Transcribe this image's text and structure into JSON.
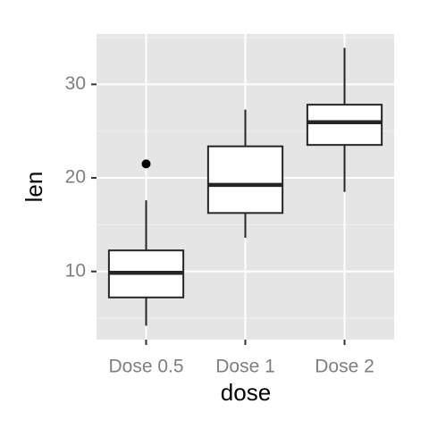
{
  "chart_data": {
    "type": "boxplot",
    "x_label": "dose",
    "y_label": "len",
    "categories": [
      "Dose 0.5",
      "Dose 1",
      "Dose 2"
    ],
    "boxes": [
      {
        "min": 4.2,
        "q1": 7.225,
        "median": 9.85,
        "q3": 12.25,
        "max": 17.6,
        "outliers": [
          21.5
        ]
      },
      {
        "min": 13.6,
        "q1": 16.25,
        "median": 19.25,
        "q3": 23.375,
        "max": 27.3,
        "outliers": []
      },
      {
        "min": 18.5,
        "q1": 23.525,
        "median": 25.95,
        "q3": 27.825,
        "max": 33.9,
        "outliers": []
      }
    ],
    "ylim": [
      2.715,
      35.385
    ],
    "yticks": [
      10,
      20,
      30
    ],
    "minor_grid": [
      5,
      15,
      25,
      35
    ],
    "grid": true,
    "panel_color": "#e5e5e5",
    "box_fill": "#ffffff",
    "line_color": "#262626"
  }
}
